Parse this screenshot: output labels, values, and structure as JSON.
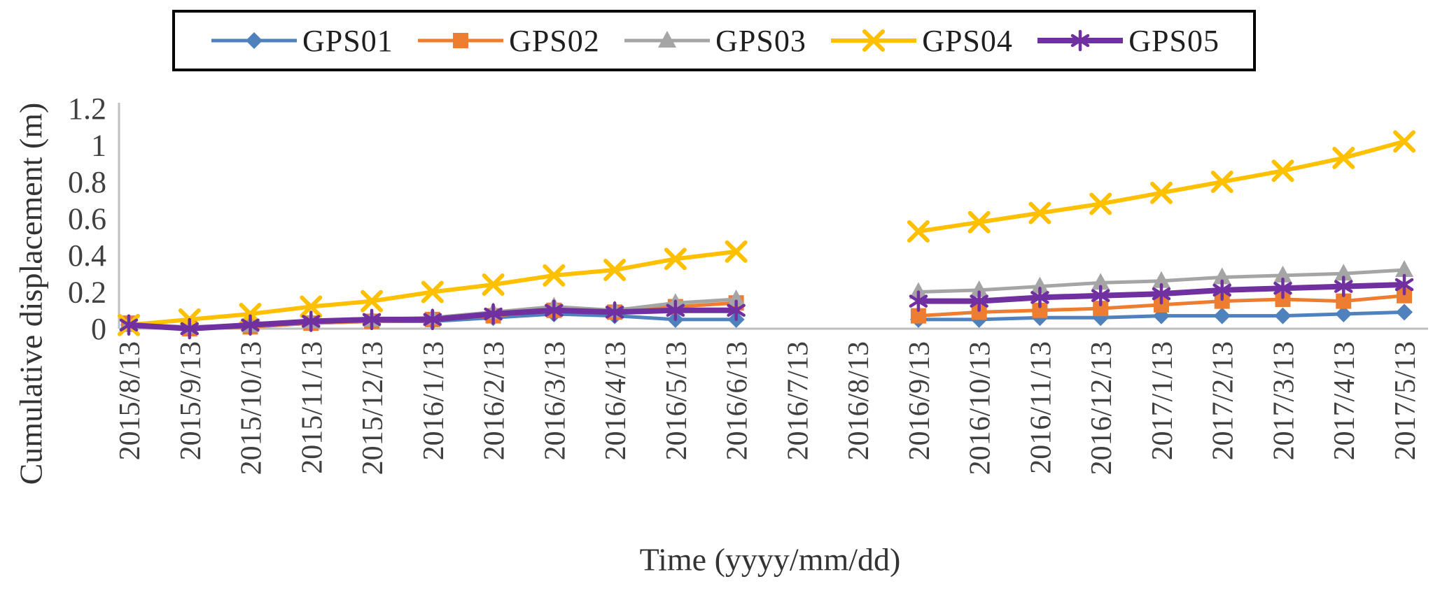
{
  "figure": {
    "background": "#FFFFFF",
    "axis_line_color": "#BFBFBF",
    "text_color": "#404040",
    "legend_border_color": "#000000"
  },
  "chart_data": {
    "type": "line",
    "title": "",
    "xlabel": "Time (yyyy/mm/dd)",
    "ylabel": "Cumulative displacement (m)",
    "ylim": [
      0,
      1.2
    ],
    "y_ticks": [
      "0",
      "0.2",
      "0.4",
      "0.6",
      "0.8",
      "1",
      "1.2"
    ],
    "y_tick_values": [
      0,
      0.2,
      0.4,
      0.6,
      0.8,
      1,
      1.2
    ],
    "grid": false,
    "legend_position": "top",
    "x_tick_rotation": -90,
    "categories": [
      "2015/8/13",
      "2015/9/13",
      "2015/10/13",
      "2015/11/13",
      "2015/12/13",
      "2016/1/13",
      "2016/2/13",
      "2016/3/13",
      "2016/4/13",
      "2016/5/13",
      "2016/6/13",
      "2016/7/13",
      "2016/8/13",
      "2016/9/13",
      "2016/10/13",
      "2016/11/13",
      "2016/12/13",
      "2017/1/13",
      "2017/2/13",
      "2017/3/13",
      "2017/4/13",
      "2017/5/13"
    ],
    "series": [
      {
        "name": "GPS01",
        "color": "#4F81BD",
        "marker": "diamond",
        "values": [
          0.02,
          0.0,
          0.01,
          0.03,
          0.04,
          0.04,
          0.06,
          0.08,
          0.07,
          0.05,
          0.05,
          null,
          null,
          0.05,
          0.05,
          0.06,
          0.06,
          0.07,
          0.07,
          0.07,
          0.08,
          0.09
        ]
      },
      {
        "name": "GPS02",
        "color": "#ED7D31",
        "marker": "square",
        "values": [
          0.03,
          0.0,
          0.01,
          0.03,
          0.04,
          0.05,
          0.07,
          0.1,
          0.09,
          0.12,
          0.14,
          null,
          null,
          0.07,
          0.09,
          0.1,
          0.11,
          0.13,
          0.15,
          0.16,
          0.15,
          0.18
        ]
      },
      {
        "name": "GPS03",
        "color": "#A5A5A5",
        "marker": "triangle",
        "values": [
          0.02,
          0.01,
          0.02,
          0.04,
          0.05,
          0.06,
          0.09,
          0.12,
          0.1,
          0.14,
          0.16,
          null,
          null,
          0.2,
          0.21,
          0.23,
          0.25,
          0.26,
          0.28,
          0.29,
          0.3,
          0.32
        ]
      },
      {
        "name": "GPS04",
        "color": "#FFC000",
        "marker": "x",
        "values": [
          0.02,
          0.05,
          0.08,
          0.12,
          0.15,
          0.2,
          0.24,
          0.29,
          0.32,
          0.38,
          0.42,
          null,
          null,
          0.53,
          0.58,
          0.63,
          0.68,
          0.74,
          0.8,
          0.86,
          0.93,
          1.02
        ]
      },
      {
        "name": "GPS05",
        "color": "#7030A0",
        "marker": "asterisk",
        "values": [
          0.02,
          0.0,
          0.02,
          0.04,
          0.05,
          0.05,
          0.08,
          0.1,
          0.09,
          0.1,
          0.1,
          null,
          null,
          0.15,
          0.15,
          0.17,
          0.18,
          0.19,
          0.21,
          0.22,
          0.23,
          0.24
        ]
      }
    ]
  }
}
